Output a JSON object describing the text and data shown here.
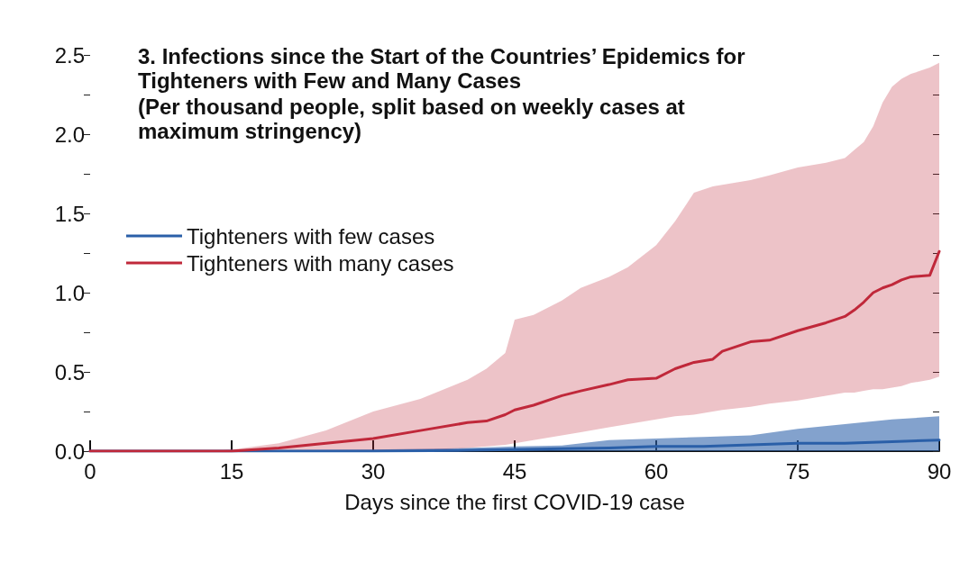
{
  "chart_data": {
    "type": "line",
    "title": "3. Infections since the Start of the Countries’ Epidemics for Tighteners with Few and Many Cases",
    "subtitle": "(Per thousand people, split based on weekly cases at maximum stringency)",
    "xlabel": "Days since the first COVID-19 case",
    "xlim": [
      0,
      90
    ],
    "xticks": [
      0,
      15,
      30,
      45,
      60,
      75,
      90
    ],
    "ylim": [
      0,
      2.5
    ],
    "yticks": [
      {
        "value": 0,
        "label": "0.0"
      },
      {
        "value": 0.25,
        "label": null
      },
      0.5,
      {
        "value": 0.75,
        "label": null
      },
      {
        "value": 1,
        "label": "1.0"
      },
      {
        "value": 1.25,
        "label": null
      },
      1.5,
      {
        "value": 1.75,
        "label": null
      },
      {
        "value": 2,
        "label": "2.0"
      },
      {
        "value": 2.25,
        "label": null
      },
      2.5
    ],
    "grid": false,
    "legend": "top left",
    "marker": "none",
    "line_style": "solid",
    "series": [
      {
        "name": "Tighteners with few cases",
        "color": "#2a5fa8",
        "x": [
          0,
          30,
          40,
          45,
          50,
          55,
          60,
          65,
          70,
          75,
          80,
          85,
          90
        ],
        "values": [
          0,
          0,
          0.005,
          0.01,
          0.015,
          0.02,
          0.03,
          0.03,
          0.04,
          0.05,
          0.05,
          0.06,
          0.07
        ],
        "lower": [
          0,
          0,
          0,
          0,
          0,
          0,
          0,
          0,
          0,
          0,
          0,
          0,
          0
        ],
        "upper": [
          0,
          0.01,
          0.02,
          0.03,
          0.035,
          0.07,
          0.08,
          0.09,
          0.1,
          0.14,
          0.17,
          0.2,
          0.22
        ]
      },
      {
        "name": "Tighteners with many cases",
        "color": "#c0283a",
        "x": [
          0,
          13,
          15,
          20,
          25,
          30,
          35,
          40,
          42,
          44,
          45,
          47,
          50,
          52,
          55,
          57,
          60,
          62,
          64,
          66,
          67,
          70,
          72,
          75,
          78,
          80,
          81,
          82,
          83,
          84,
          85,
          86,
          87,
          89,
          90
        ],
        "values": [
          0,
          0,
          0,
          0.02,
          0.05,
          0.08,
          0.13,
          0.18,
          0.19,
          0.23,
          0.26,
          0.29,
          0.35,
          0.38,
          0.42,
          0.45,
          0.46,
          0.52,
          0.56,
          0.58,
          0.63,
          0.69,
          0.7,
          0.76,
          0.81,
          0.85,
          0.89,
          0.94,
          1.0,
          1.03,
          1.05,
          1.08,
          1.1,
          1.11,
          1.26
        ],
        "lower": [
          0,
          0,
          0,
          0,
          0,
          0,
          0,
          0.02,
          0.03,
          0.04,
          0.05,
          0.07,
          0.1,
          0.12,
          0.15,
          0.17,
          0.2,
          0.22,
          0.23,
          0.25,
          0.26,
          0.28,
          0.3,
          0.32,
          0.35,
          0.37,
          0.37,
          0.38,
          0.39,
          0.39,
          0.4,
          0.41,
          0.43,
          0.45,
          0.47
        ],
        "upper": [
          0,
          0,
          0.01,
          0.05,
          0.13,
          0.25,
          0.33,
          0.45,
          0.52,
          0.62,
          0.83,
          0.86,
          0.95,
          1.03,
          1.1,
          1.16,
          1.3,
          1.45,
          1.63,
          1.67,
          1.68,
          1.71,
          1.74,
          1.79,
          1.82,
          1.85,
          1.9,
          1.95,
          2.05,
          2.2,
          2.3,
          2.35,
          2.38,
          2.42,
          2.45
        ]
      }
    ]
  }
}
